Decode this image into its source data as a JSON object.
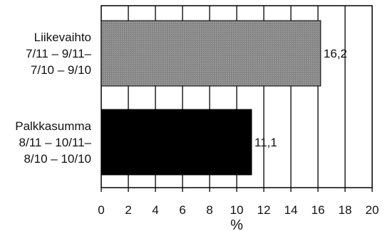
{
  "chart_data": {
    "type": "bar",
    "orientation": "horizontal",
    "categories": [
      [
        "Liikevaihto",
        "7/11 – 9/11–",
        "7/10 – 9/10"
      ],
      [
        "Palkkasumma",
        "8/11 – 10/11–",
        "8/10 – 10/10"
      ]
    ],
    "values": [
      16.2,
      11.1
    ],
    "value_labels": [
      "16,2",
      "11,1"
    ],
    "bar_colors": [
      "#8a8a8a",
      "#000000"
    ],
    "bar_fill_patterns": [
      "dotted-gray",
      "solid-black"
    ],
    "xlabel": "%",
    "xlim": [
      0,
      20
    ],
    "xticks": [
      0,
      2,
      4,
      6,
      8,
      10,
      12,
      14,
      16,
      18,
      20
    ],
    "grid": "vertical",
    "legend": "none"
  }
}
